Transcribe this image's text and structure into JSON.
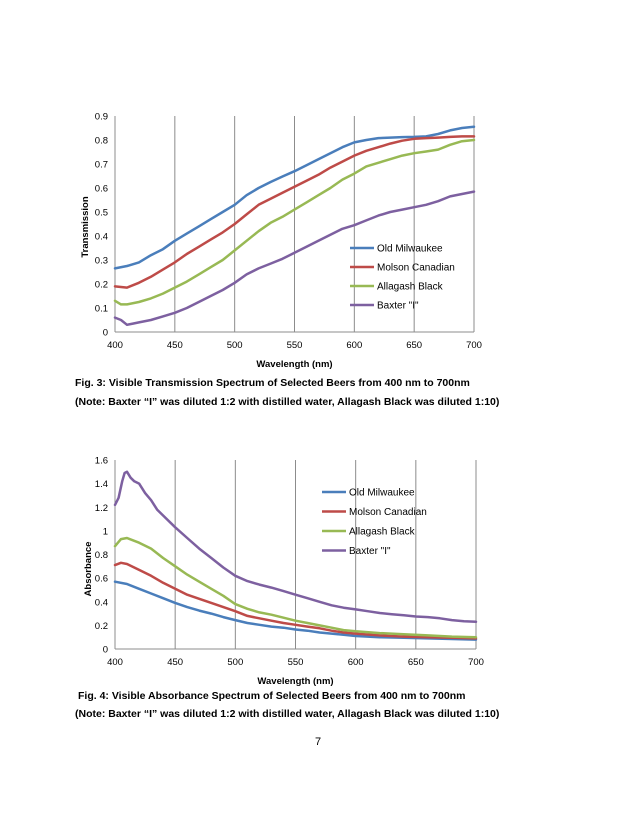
{
  "chart_data": [
    {
      "type": "line",
      "xlabel": "Wavelength (nm)",
      "ylabel": "Transmission",
      "xlim": [
        400,
        700
      ],
      "ylim": [
        0,
        0.9
      ],
      "x_ticks": [
        "400",
        "450",
        "500",
        "550",
        "600",
        "650",
        "700"
      ],
      "y_ticks": [
        "0",
        "0.1",
        "0.2",
        "0.3",
        "0.4",
        "0.5",
        "0.6",
        "0.7",
        "0.8",
        "0.9"
      ],
      "grid": "vertical",
      "legend": "right",
      "series": [
        {
          "name": "Old Milwaukee",
          "color": "#4a7ebb",
          "x": [
            400,
            410,
            420,
            430,
            440,
            450,
            460,
            470,
            480,
            490,
            500,
            510,
            520,
            530,
            540,
            550,
            560,
            570,
            580,
            590,
            600,
            610,
            620,
            630,
            640,
            650,
            660,
            670,
            680,
            690,
            700
          ],
          "y": [
            0.265,
            0.275,
            0.29,
            0.32,
            0.345,
            0.38,
            0.41,
            0.44,
            0.47,
            0.5,
            0.53,
            0.57,
            0.6,
            0.625,
            0.648,
            0.67,
            0.695,
            0.72,
            0.745,
            0.77,
            0.79,
            0.8,
            0.808,
            0.81,
            0.812,
            0.813,
            0.815,
            0.825,
            0.84,
            0.85,
            0.855
          ]
        },
        {
          "name": "Molson Canadian",
          "color": "#be4b48",
          "x": [
            400,
            410,
            420,
            430,
            440,
            450,
            460,
            470,
            480,
            490,
            500,
            510,
            520,
            530,
            540,
            550,
            560,
            570,
            580,
            590,
            600,
            610,
            620,
            630,
            640,
            650,
            660,
            670,
            680,
            690,
            700
          ],
          "y": [
            0.19,
            0.185,
            0.205,
            0.23,
            0.26,
            0.29,
            0.325,
            0.355,
            0.385,
            0.415,
            0.45,
            0.49,
            0.53,
            0.555,
            0.58,
            0.605,
            0.63,
            0.655,
            0.685,
            0.71,
            0.735,
            0.755,
            0.77,
            0.785,
            0.797,
            0.805,
            0.808,
            0.81,
            0.813,
            0.815,
            0.815
          ]
        },
        {
          "name": "Allagash Black",
          "color": "#98b954",
          "x": [
            400,
            405,
            410,
            420,
            430,
            440,
            450,
            460,
            470,
            480,
            490,
            500,
            510,
            520,
            530,
            540,
            550,
            560,
            570,
            580,
            590,
            600,
            610,
            620,
            630,
            640,
            650,
            660,
            670,
            680,
            690,
            700
          ],
          "y": [
            0.13,
            0.115,
            0.115,
            0.125,
            0.14,
            0.16,
            0.185,
            0.21,
            0.24,
            0.27,
            0.3,
            0.34,
            0.38,
            0.42,
            0.455,
            0.48,
            0.51,
            0.54,
            0.57,
            0.6,
            0.635,
            0.66,
            0.69,
            0.705,
            0.72,
            0.735,
            0.745,
            0.752,
            0.76,
            0.78,
            0.795,
            0.8
          ]
        },
        {
          "name": "Baxter \"I\"",
          "color": "#7d60a0",
          "x": [
            400,
            405,
            410,
            415,
            420,
            430,
            440,
            450,
            460,
            470,
            480,
            490,
            500,
            510,
            520,
            530,
            540,
            550,
            560,
            570,
            580,
            590,
            600,
            610,
            620,
            630,
            640,
            650,
            660,
            670,
            680,
            690,
            700
          ],
          "y": [
            0.06,
            0.05,
            0.03,
            0.035,
            0.04,
            0.05,
            0.065,
            0.08,
            0.1,
            0.125,
            0.15,
            0.175,
            0.205,
            0.24,
            0.265,
            0.285,
            0.305,
            0.33,
            0.355,
            0.38,
            0.405,
            0.43,
            0.445,
            0.465,
            0.485,
            0.5,
            0.51,
            0.52,
            0.53,
            0.545,
            0.565,
            0.575,
            0.585
          ]
        }
      ]
    },
    {
      "type": "line",
      "xlabel": "Wavelength (nm)",
      "ylabel": "Absorbance",
      "xlim": [
        400,
        700
      ],
      "ylim": [
        0,
        1.6
      ],
      "x_ticks": [
        "400",
        "450",
        "500",
        "550",
        "600",
        "650",
        "700"
      ],
      "y_ticks": [
        "0",
        "0.2",
        "0.4",
        "0.6",
        "0.8",
        "1",
        "1.2",
        "1.4",
        "1.6"
      ],
      "grid": "vertical",
      "legend": "right",
      "series": [
        {
          "name": "Old Milwaukee",
          "color": "#4a7ebb",
          "x": [
            400,
            410,
            420,
            430,
            440,
            450,
            460,
            470,
            480,
            490,
            500,
            510,
            520,
            530,
            540,
            550,
            560,
            570,
            580,
            590,
            600,
            620,
            640,
            660,
            680,
            700
          ],
          "y": [
            0.57,
            0.55,
            0.51,
            0.47,
            0.43,
            0.39,
            0.355,
            0.325,
            0.3,
            0.27,
            0.245,
            0.22,
            0.205,
            0.19,
            0.18,
            0.165,
            0.155,
            0.14,
            0.13,
            0.12,
            0.11,
            0.1,
            0.095,
            0.09,
            0.085,
            0.08
          ]
        },
        {
          "name": "Molson Canadian",
          "color": "#be4b48",
          "x": [
            400,
            405,
            410,
            420,
            430,
            440,
            450,
            460,
            470,
            480,
            490,
            500,
            510,
            520,
            530,
            540,
            550,
            560,
            570,
            580,
            590,
            600,
            620,
            640,
            660,
            680,
            700
          ],
          "y": [
            0.71,
            0.73,
            0.72,
            0.67,
            0.62,
            0.56,
            0.51,
            0.46,
            0.425,
            0.39,
            0.355,
            0.32,
            0.28,
            0.26,
            0.24,
            0.22,
            0.205,
            0.19,
            0.175,
            0.155,
            0.14,
            0.13,
            0.115,
            0.105,
            0.1,
            0.095,
            0.09
          ]
        },
        {
          "name": "Allagash Black",
          "color": "#98b954",
          "x": [
            400,
            405,
            410,
            420,
            430,
            440,
            450,
            460,
            470,
            480,
            490,
            500,
            510,
            520,
            530,
            540,
            550,
            560,
            570,
            580,
            590,
            600,
            620,
            640,
            660,
            680,
            700
          ],
          "y": [
            0.87,
            0.93,
            0.94,
            0.9,
            0.85,
            0.77,
            0.7,
            0.63,
            0.57,
            0.51,
            0.45,
            0.38,
            0.34,
            0.31,
            0.29,
            0.265,
            0.24,
            0.22,
            0.2,
            0.18,
            0.16,
            0.15,
            0.135,
            0.125,
            0.115,
            0.105,
            0.1
          ]
        },
        {
          "name": "Baxter \"I\"",
          "color": "#7d60a0",
          "x": [
            400,
            403,
            406,
            408,
            410,
            413,
            416,
            420,
            425,
            430,
            435,
            440,
            450,
            460,
            470,
            480,
            490,
            500,
            510,
            520,
            530,
            540,
            550,
            560,
            570,
            580,
            590,
            600,
            610,
            620,
            630,
            640,
            650,
            660,
            670,
            680,
            690,
            700
          ],
          "y": [
            1.22,
            1.28,
            1.42,
            1.49,
            1.5,
            1.45,
            1.42,
            1.4,
            1.32,
            1.26,
            1.18,
            1.13,
            1.03,
            0.94,
            0.85,
            0.77,
            0.69,
            0.62,
            0.575,
            0.545,
            0.52,
            0.49,
            0.46,
            0.43,
            0.4,
            0.37,
            0.35,
            0.335,
            0.32,
            0.305,
            0.295,
            0.285,
            0.275,
            0.27,
            0.26,
            0.245,
            0.235,
            0.23
          ]
        }
      ]
    }
  ],
  "captions": {
    "fig3_title": "Fig. 3:  Visible Transmission Spectrum of Selected Beers from 400 nm to 700nm",
    "fig3_note": "(Note: Baxter “I” was diluted 1:2 with distilled water, Allagash Black was diluted 1:10)",
    "fig4_title": "Fig. 4:  Visible Absorbance Spectrum of Selected Beers from 400 nm to 700nm",
    "fig4_note": "(Note: Baxter “I” was diluted 1:2 with distilled water, Allagash Black was diluted 1:10)"
  },
  "page_number": "7"
}
